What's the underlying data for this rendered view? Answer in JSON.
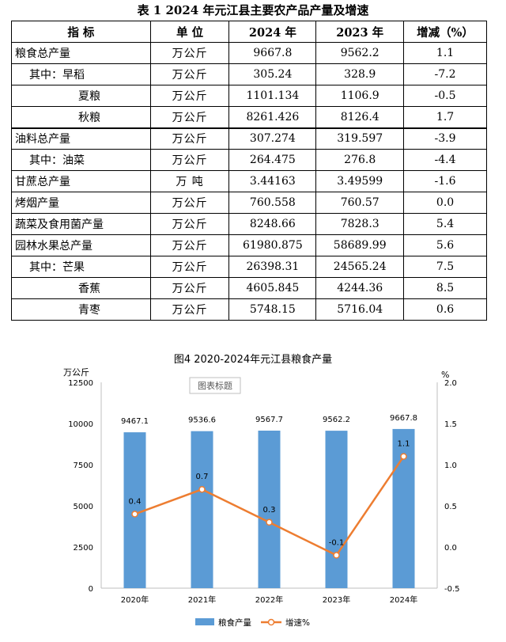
{
  "table": {
    "title": "表 1    2024 年元江县主要农产品产量及增速",
    "headers": [
      "指    标",
      "单    位",
      "2024 年",
      "2023 年",
      "增减（%）"
    ],
    "rows": [
      {
        "name": "粮食总产量",
        "unit": "万公斤",
        "y2024": "9667.8",
        "y2023": "9562.2",
        "change": "1.1",
        "indent": 0,
        "grouptop": false
      },
      {
        "name": "其中：早稻",
        "unit": "万公斤",
        "y2024": "305.24",
        "y2023": "328.9",
        "change": "-7.2",
        "indent": 1,
        "grouptop": false
      },
      {
        "name": "夏粮",
        "unit": "万公斤",
        "y2024": "1101.134",
        "y2023": "1106.9",
        "change": "-0.5",
        "indent": 2,
        "grouptop": false
      },
      {
        "name": "秋粮",
        "unit": "万公斤",
        "y2024": "8261.426",
        "y2023": "8126.4",
        "change": "1.7",
        "indent": 2,
        "grouptop": false
      },
      {
        "name": "油料总产量",
        "unit": "万公斤",
        "y2024": "307.274",
        "y2023": "319.597",
        "change": "-3.9",
        "indent": 0,
        "grouptop": true
      },
      {
        "name": "其中：油菜",
        "unit": "万公斤",
        "y2024": "264.475",
        "y2023": "276.8",
        "change": "-4.4",
        "indent": 1,
        "grouptop": false
      },
      {
        "name": "甘蔗总产量",
        "unit": "万    吨",
        "y2024": "3.44163",
        "y2023": "3.49599",
        "change": "-1.6",
        "indent": 0,
        "grouptop": false
      },
      {
        "name": "烤烟产量",
        "unit": "万公斤",
        "y2024": "760.558",
        "y2023": "760.57",
        "change": "0.0",
        "indent": 0,
        "grouptop": false
      },
      {
        "name": "蔬菜及食用菌产量",
        "unit": "万公斤",
        "y2024": "8248.66",
        "y2023": "7828.3",
        "change": "5.4",
        "indent": 0,
        "grouptop": false
      },
      {
        "name": "园林水果总产量",
        "unit": "万公斤",
        "y2024": "61980.875",
        "y2023": "58689.99",
        "change": "5.6",
        "indent": 0,
        "grouptop": false
      },
      {
        "name": "其中：芒果",
        "unit": "万公斤",
        "y2024": "26398.31",
        "y2023": "24565.24",
        "change": "7.5",
        "indent": 1,
        "grouptop": false
      },
      {
        "name": "香蕉",
        "unit": "万公斤",
        "y2024": "4605.845",
        "y2023": "4244.36",
        "change": "8.5",
        "indent": 2,
        "grouptop": false
      },
      {
        "name": "青枣",
        "unit": "万公斤",
        "y2024": "5748.15",
        "y2023": "5716.04",
        "change": "0.6",
        "indent": 2,
        "grouptop": false
      }
    ]
  },
  "chart_data": {
    "type": "bar",
    "title": "图4    2020-2024年元江县粮食产量",
    "placeholder_label": "图表标题",
    "categories": [
      "2020年",
      "2021年",
      "2022年",
      "2023年",
      "2024年"
    ],
    "series": [
      {
        "name": "粮食产量",
        "kind": "bar",
        "axis": "left",
        "color": "#5b9bd5",
        "values": [
          9467.1,
          9536.6,
          9567.7,
          9562.2,
          9667.8
        ],
        "labels": [
          "9467.1",
          "9536.6",
          "9567.7",
          "9562.2",
          "9667.8"
        ]
      },
      {
        "name": "增速%",
        "kind": "line",
        "axis": "right",
        "color": "#ed7d31",
        "values": [
          0.4,
          0.7,
          0.3,
          -0.1,
          1.1
        ],
        "labels": [
          "0.4",
          "0.7",
          "0.3",
          "-0.1",
          "1.1"
        ]
      }
    ],
    "y_left": {
      "unit": "万公斤",
      "min": 0,
      "max": 12500,
      "ticks": [
        0,
        2500,
        5000,
        7500,
        10000,
        12500
      ],
      "tick_labels": [
        "0",
        "2500",
        "5000",
        "7500",
        "10000",
        "12500"
      ]
    },
    "y_right": {
      "unit": "%",
      "min": -0.5,
      "max": 2.0,
      "ticks": [
        -0.5,
        0.0,
        0.5,
        1.0,
        1.5,
        2.0
      ],
      "tick_labels": [
        "-0.5",
        "0.0",
        "0.5",
        "1.0",
        "1.5",
        "2.0"
      ]
    },
    "legend_position": "bottom",
    "grid": false
  }
}
